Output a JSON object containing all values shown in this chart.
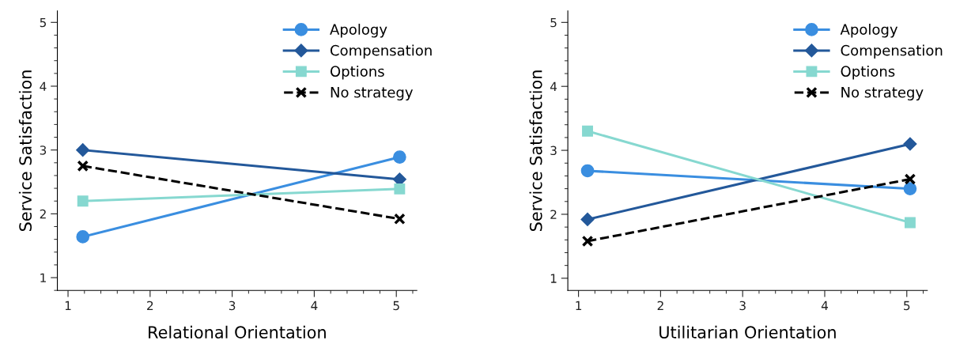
{
  "chart_data": [
    {
      "type": "line",
      "xlabel": "Relational Orientation",
      "ylabel": "Service Satisfaction",
      "xlim": [
        0.87,
        5.25
      ],
      "ylim": [
        0.8,
        5.18
      ],
      "xticks": [
        1,
        2,
        3,
        4,
        5
      ],
      "yticks": [
        1,
        2,
        3,
        4,
        5
      ],
      "grid": false,
      "legend": "top right",
      "series": [
        {
          "name": "Apology",
          "color": "#3a8ee0",
          "marker": "circle",
          "line_style": "solid",
          "x": [
            1.18,
            5.04
          ],
          "values": [
            1.64,
            2.89
          ]
        },
        {
          "name": "Compensation",
          "color": "#23589a",
          "marker": "diamond",
          "line_style": "solid",
          "x": [
            1.18,
            5.04
          ],
          "values": [
            3.0,
            2.54
          ]
        },
        {
          "name": "Options",
          "color": "#86d8d0",
          "marker": "square",
          "line_style": "solid",
          "x": [
            1.18,
            5.04
          ],
          "values": [
            2.2,
            2.39
          ]
        },
        {
          "name": "No strategy",
          "color": "#000000",
          "marker": "cross",
          "line_style": "dashed",
          "x": [
            1.18,
            5.04
          ],
          "values": [
            2.75,
            1.92
          ]
        }
      ]
    },
    {
      "type": "line",
      "xlabel": "Utilitarian Orientation",
      "ylabel": "Service Satisfaction",
      "xlim": [
        0.87,
        5.25
      ],
      "ylim": [
        0.81,
        5.18
      ],
      "xticks": [
        1,
        2,
        3,
        4,
        5
      ],
      "yticks": [
        1,
        2,
        3,
        4,
        5
      ],
      "grid": false,
      "legend": "top right",
      "series": [
        {
          "name": "Apology",
          "color": "#3a8ee0",
          "marker": "circle",
          "line_style": "solid",
          "x": [
            1.11,
            5.04
          ],
          "values": [
            2.68,
            2.4
          ]
        },
        {
          "name": "Compensation",
          "color": "#23589a",
          "marker": "diamond",
          "line_style": "solid",
          "x": [
            1.11,
            5.04
          ],
          "values": [
            1.92,
            3.1
          ]
        },
        {
          "name": "Options",
          "color": "#86d8d0",
          "marker": "square",
          "line_style": "solid",
          "x": [
            1.11,
            5.04
          ],
          "values": [
            3.3,
            1.87
          ]
        },
        {
          "name": "No strategy",
          "color": "#000000",
          "marker": "cross",
          "line_style": "dashed",
          "x": [
            1.11,
            5.04
          ],
          "values": [
            1.58,
            2.55
          ]
        }
      ]
    }
  ]
}
